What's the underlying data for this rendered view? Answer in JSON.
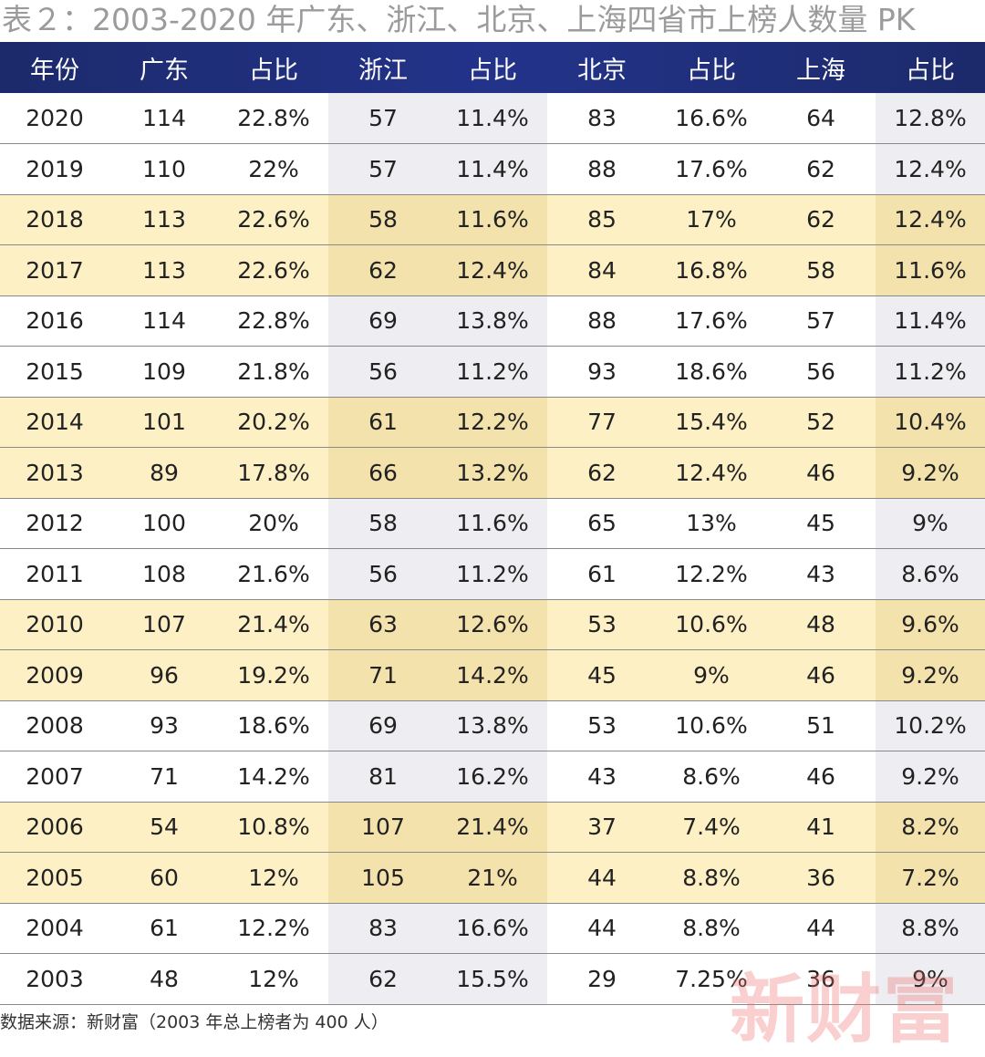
{
  "title": "表２：2003-2020 年广东、浙江、北京、上海四省市上榜人数量 PK",
  "headers": [
    "年份",
    "广东",
    "占比",
    "浙江",
    "占比",
    "北京",
    "占比",
    "上海",
    "占比"
  ],
  "rows": [
    {
      "highlight": false,
      "cells": [
        "2020",
        "114",
        "22.8%",
        "57",
        "11.4%",
        "83",
        "16.6%",
        "64",
        "12.8%"
      ]
    },
    {
      "highlight": false,
      "cells": [
        "2019",
        "110",
        "22%",
        "57",
        "11.4%",
        "88",
        "17.6%",
        "62",
        "12.4%"
      ]
    },
    {
      "highlight": true,
      "cells": [
        "2018",
        "113",
        "22.6%",
        "58",
        "11.6%",
        "85",
        "17%",
        "62",
        "12.4%"
      ]
    },
    {
      "highlight": true,
      "cells": [
        "2017",
        "113",
        "22.6%",
        "62",
        "12.4%",
        "84",
        "16.8%",
        "58",
        "11.6%"
      ]
    },
    {
      "highlight": false,
      "cells": [
        "2016",
        "114",
        "22.8%",
        "69",
        "13.8%",
        "88",
        "17.6%",
        "57",
        "11.4%"
      ]
    },
    {
      "highlight": false,
      "cells": [
        "2015",
        "109",
        "21.8%",
        "56",
        "11.2%",
        "93",
        "18.6%",
        "56",
        "11.2%"
      ]
    },
    {
      "highlight": true,
      "cells": [
        "2014",
        "101",
        "20.2%",
        "61",
        "12.2%",
        "77",
        "15.4%",
        "52",
        "10.4%"
      ]
    },
    {
      "highlight": true,
      "cells": [
        "2013",
        "89",
        "17.8%",
        "66",
        "13.2%",
        "62",
        "12.4%",
        "46",
        "9.2%"
      ]
    },
    {
      "highlight": false,
      "cells": [
        "2012",
        "100",
        "20%",
        "58",
        "11.6%",
        "65",
        "13%",
        "45",
        "9%"
      ]
    },
    {
      "highlight": false,
      "cells": [
        "2011",
        "108",
        "21.6%",
        "56",
        "11.2%",
        "61",
        "12.2%",
        "43",
        "8.6%"
      ]
    },
    {
      "highlight": true,
      "cells": [
        "2010",
        "107",
        "21.4%",
        "63",
        "12.6%",
        "53",
        "10.6%",
        "48",
        "9.6%"
      ]
    },
    {
      "highlight": true,
      "cells": [
        "2009",
        "96",
        "19.2%",
        "71",
        "14.2%",
        "45",
        "9%",
        "46",
        "9.2%"
      ]
    },
    {
      "highlight": false,
      "cells": [
        "2008",
        "93",
        "18.6%",
        "69",
        "13.8%",
        "53",
        "10.6%",
        "51",
        "10.2%"
      ]
    },
    {
      "highlight": false,
      "cells": [
        "2007",
        "71",
        "14.2%",
        "81",
        "16.2%",
        "43",
        "8.6%",
        "46",
        "9.2%"
      ]
    },
    {
      "highlight": true,
      "cells": [
        "2006",
        "54",
        "10.8%",
        "107",
        "21.4%",
        "37",
        "7.4%",
        "41",
        "8.2%"
      ]
    },
    {
      "highlight": true,
      "cells": [
        "2005",
        "60",
        "12%",
        "105",
        "21%",
        "44",
        "8.8%",
        "36",
        "7.2%"
      ]
    },
    {
      "highlight": false,
      "cells": [
        "2004",
        "61",
        "12.2%",
        "83",
        "16.6%",
        "44",
        "8.8%",
        "44",
        "8.8%"
      ]
    },
    {
      "highlight": false,
      "cells": [
        "2003",
        "48",
        "12%",
        "62",
        "15.5%",
        "29",
        "7.25%",
        "36",
        "9%"
      ]
    }
  ],
  "footer": "数据来源：新财富（2003 年总上榜者为 400 人）",
  "watermark": "新财富",
  "colors": {
    "header_bg": "#1c2a6b",
    "highlight_row": "#fdf0c4",
    "highlight_col": "#f4e2ad",
    "shaded_col": "#eeeef2",
    "watermark": "#f06e6e"
  }
}
